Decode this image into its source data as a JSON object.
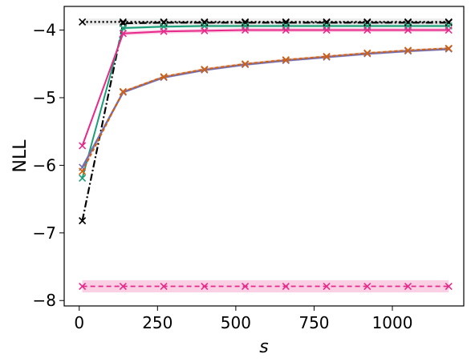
{
  "chart_data": {
    "type": "line",
    "title": "",
    "xlabel": "s",
    "ylabel": "NLL",
    "xlim": [
      -48,
      1228
    ],
    "ylim": [
      -8.08,
      -3.65
    ],
    "xticks": [
      0,
      250,
      500,
      750,
      1000
    ],
    "xtick_labels": [
      "0",
      "250",
      "500",
      "750",
      "1000"
    ],
    "yticks": [
      -8,
      -7,
      -6,
      -5,
      -4
    ],
    "ytick_labels": [
      "−8",
      "−7",
      "−6",
      "−5",
      "−4"
    ],
    "grid": false,
    "x": [
      10,
      140,
      270,
      400,
      530,
      660,
      790,
      920,
      1050,
      1180
    ],
    "series": [
      {
        "color": "#000000",
        "dash": "2,3",
        "width": 2.5,
        "marker": "x",
        "band": 0.05,
        "band_color": "#aaaaaa",
        "values": [
          -3.88,
          -3.88,
          -3.88,
          -3.88,
          -3.88,
          -3.88,
          -3.88,
          -3.88,
          -3.88,
          -3.88
        ]
      },
      {
        "color": "#000000",
        "dash": "9,3,2,3",
        "width": 2.2,
        "marker": "x",
        "band": 0.02,
        "band_color": "#aaaaaa",
        "values": [
          -6.82,
          -3.9,
          -3.89,
          -3.89,
          -3.89,
          -3.89,
          -3.89,
          -3.89,
          -3.89,
          -3.89
        ]
      },
      {
        "color": "#1b9e77",
        "dash": "",
        "width": 2,
        "marker": "x",
        "band": 0.02,
        "band_color": "#1b9e77",
        "values": [
          -6.19,
          -3.97,
          -3.95,
          -3.94,
          -3.94,
          -3.94,
          -3.94,
          -3.94,
          -3.94,
          -3.94
        ]
      },
      {
        "color": "#e7298a",
        "dash": "",
        "width": 2,
        "marker": "x",
        "band": 0.03,
        "band_color": "#e7298a",
        "values": [
          -5.71,
          -4.05,
          -4.02,
          -4.01,
          -4.0,
          -4.0,
          -4.0,
          -4.0,
          -4.0,
          -4.0
        ]
      },
      {
        "color": "#7570b3",
        "dash": "",
        "width": 2.5,
        "marker": "x",
        "band": 0.02,
        "band_color": "#7570b3",
        "values": [
          -6.03,
          -4.92,
          -4.7,
          -4.59,
          -4.51,
          -4.45,
          -4.4,
          -4.35,
          -4.31,
          -4.28
        ]
      },
      {
        "color": "#d95f02",
        "dash": "4,3",
        "width": 2,
        "marker": "x",
        "band": 0.02,
        "band_color": "#d95f02",
        "values": [
          -6.09,
          -4.91,
          -4.69,
          -4.58,
          -4.5,
          -4.44,
          -4.39,
          -4.34,
          -4.3,
          -4.27
        ]
      },
      {
        "color": "#e7298a",
        "dash": "6,4",
        "width": 1.8,
        "marker": "x",
        "band": 0.09,
        "band_color": "#e7298a",
        "values": [
          -7.79,
          -7.79,
          -7.79,
          -7.79,
          -7.79,
          -7.79,
          -7.79,
          -7.79,
          -7.79,
          -7.79
        ]
      }
    ]
  }
}
